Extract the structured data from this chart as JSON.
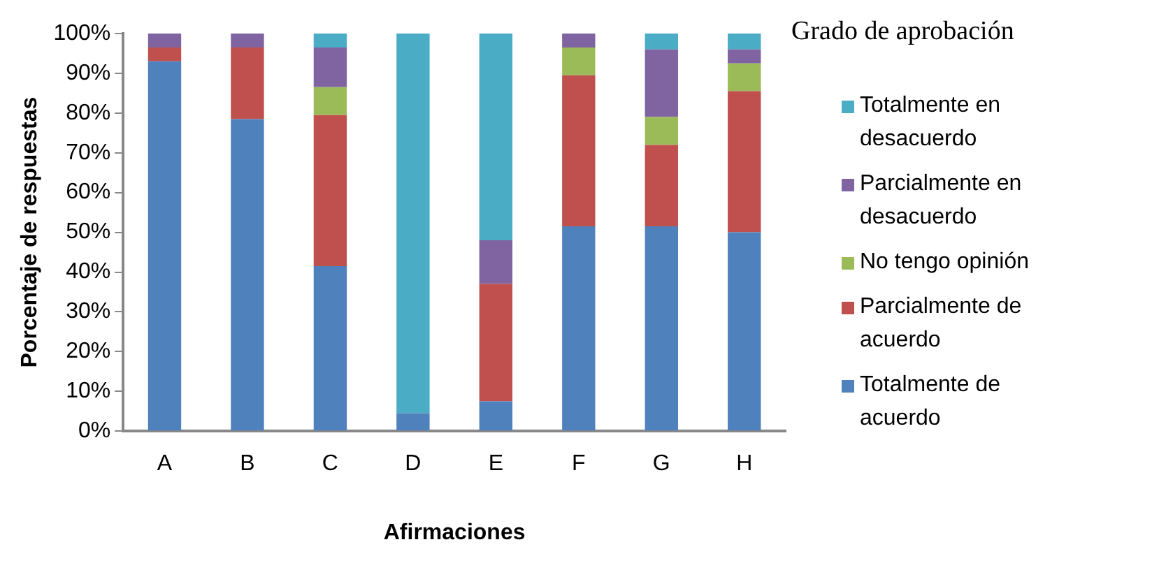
{
  "chart_data": {
    "type": "bar",
    "stacked": true,
    "xlabel": "Afirmaciones",
    "ylabel": "Porcentaje de respuestas",
    "legend_title": "Grado de aprobación",
    "legend": "right",
    "grid": false,
    "categories": [
      "A",
      "B",
      "C",
      "D",
      "E",
      "F",
      "G",
      "H"
    ],
    "ylim": [
      0,
      100
    ],
    "yticks": [
      {
        "value": 0,
        "label": "0%"
      },
      {
        "value": 10,
        "label": "10%"
      },
      {
        "value": 20,
        "label": "20%"
      },
      {
        "value": 30,
        "label": "30%"
      },
      {
        "value": 40,
        "label": "40%"
      },
      {
        "value": 50,
        "label": "50%"
      },
      {
        "value": 60,
        "label": "60%"
      },
      {
        "value": 70,
        "label": "70%"
      },
      {
        "value": 80,
        "label": "80%"
      },
      {
        "value": 90,
        "label": "90%"
      },
      {
        "value": 100,
        "label": "100%"
      }
    ],
    "series": [
      {
        "name": "Totalmente de acuerdo",
        "color": "#4f81bd",
        "values": [
          93,
          78.5,
          41.5,
          4.5,
          7.5,
          51.5,
          51.5,
          50
        ]
      },
      {
        "name": "Parcialmente de acuerdo",
        "color": "#c0504d",
        "values": [
          3.5,
          18,
          38,
          0,
          29.5,
          38,
          20.5,
          35.5
        ]
      },
      {
        "name": "No tengo opinión",
        "color": "#9bbb59",
        "values": [
          0,
          0,
          7,
          0,
          0,
          7,
          7,
          7
        ]
      },
      {
        "name": "Parcialmente en desacuerdo",
        "color": "#8064a2",
        "values": [
          3.5,
          3.5,
          10,
          0,
          11,
          3.5,
          17,
          3.5
        ]
      },
      {
        "name": "Totalmente en desacuerdo",
        "color": "#4bacc6",
        "values": [
          0,
          0,
          3.5,
          95.5,
          52,
          0,
          4,
          4
        ]
      }
    ]
  }
}
